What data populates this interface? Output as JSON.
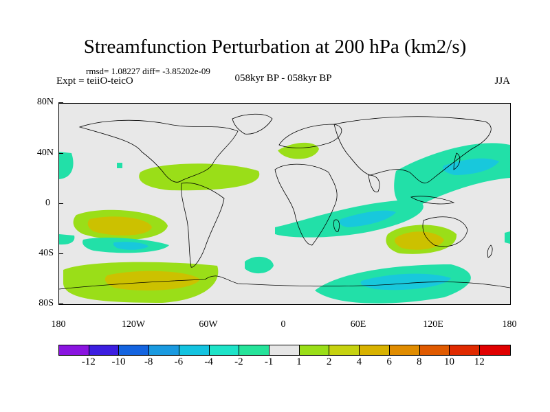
{
  "title": "Streamfunction Perturbation at 200 hPa (km2/s)",
  "stats": "rmsd= 1.08227 diff= -3.85202e-09",
  "experiment": "Expt = teiiO-teicO",
  "period": "058kyr BP - 058kyr BP",
  "season": "JJA",
  "map": {
    "projection": "cylindrical equidistant",
    "lat_labels": [
      "80N",
      "40N",
      "0",
      "40S",
      "80S"
    ],
    "lon_labels": [
      "180",
      "120W",
      "60W",
      "0",
      "60E",
      "120E",
      "180"
    ],
    "colors": {
      "background_band": "#e6e6e6",
      "neg1": "#22e0a8",
      "neg2": "#18c8dc",
      "pos1": "#9ade18",
      "pos2": "#ccc100",
      "coastline": "#000000"
    }
  },
  "colorbar": {
    "labels": [
      "-12",
      "-10",
      "-8",
      "-6",
      "-4",
      "-2",
      "-1",
      "1",
      "2",
      "4",
      "6",
      "8",
      "10",
      "12"
    ],
    "colors": [
      "#8a14e0",
      "#3c1ee0",
      "#1464e0",
      "#1a9ae0",
      "#14c3e0",
      "#1ee3c8",
      "#26e39a",
      "#e6e6e6",
      "#9ade18",
      "#c6d210",
      "#d8b200",
      "#e08c00",
      "#e05a00",
      "#e02a00",
      "#e00000"
    ]
  }
}
